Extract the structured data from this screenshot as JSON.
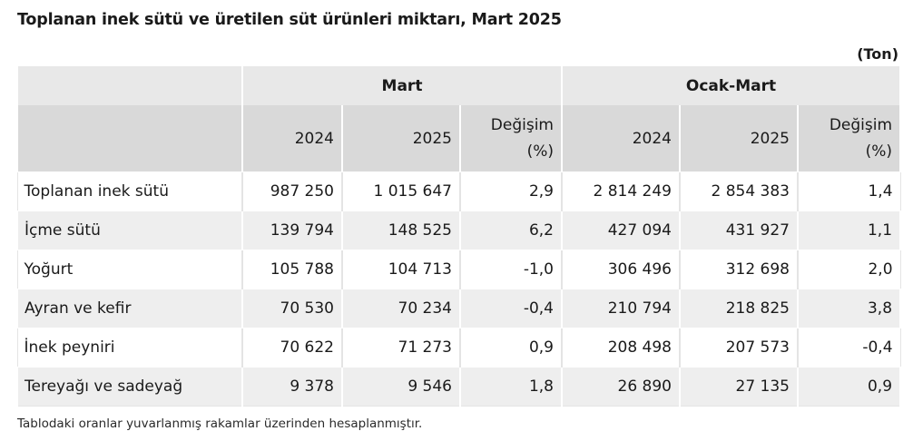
{
  "title": "Toplanan inek sütü ve üretilen süt ürünleri miktarı, Mart 2025",
  "unit": "(Ton)",
  "groups": [
    "Mart",
    "Ocak-Mart"
  ],
  "subheaders": {
    "y2024": "2024",
    "y2025": "2025",
    "change_line1": "Değişim",
    "change_line2": "(%)"
  },
  "rows": [
    {
      "label": "Toplanan inek sütü",
      "m2024": "987 250",
      "m2025": "1 015 647",
      "mchg": "2,9",
      "q2024": "2 814 249",
      "q2025": "2 854 383",
      "qchg": "1,4"
    },
    {
      "label": "İçme sütü",
      "m2024": "139 794",
      "m2025": "148 525",
      "mchg": "6,2",
      "q2024": "427 094",
      "q2025": "431 927",
      "qchg": "1,1"
    },
    {
      "label": "Yoğurt",
      "m2024": "105 788",
      "m2025": "104 713",
      "mchg": "-1,0",
      "q2024": "306 496",
      "q2025": "312 698",
      "qchg": "2,0"
    },
    {
      "label": "Ayran ve kefir",
      "m2024": "70 530",
      "m2025": "70 234",
      "mchg": "-0,4",
      "q2024": "210 794",
      "q2025": "218 825",
      "qchg": "3,8"
    },
    {
      "label": "İnek peyniri",
      "m2024": "70 622",
      "m2025": "71 273",
      "mchg": "0,9",
      "q2024": "208 498",
      "q2025": "207 573",
      "qchg": "-0,4"
    },
    {
      "label": "Tereyağı ve sadeyağ",
      "m2024": "9 378",
      "m2025": "9 546",
      "mchg": "1,8",
      "q2024": "26 890",
      "q2025": "27 135",
      "qchg": "0,9"
    }
  ],
  "footnote": "Tablodaki oranlar yuvarlanmış rakamlar üzerinden hesaplanmıştır."
}
